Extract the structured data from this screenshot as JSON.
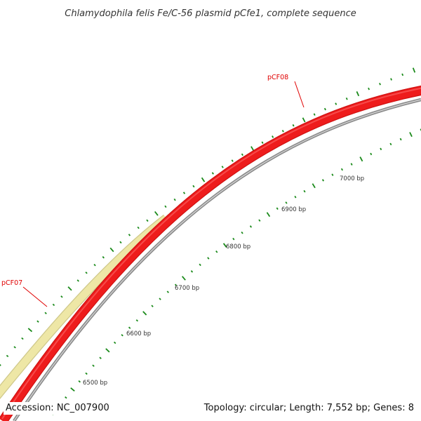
{
  "title": "Chlamydophila felis Fe/C-56 plasmid pCfe1, complete sequence",
  "footer": {
    "accession": "Accession: NC_007900",
    "summary": "Topology: circular; Length: 7,552 bp; Genes: 8"
  },
  "colors": {
    "gene_forward": "#ee1c1c",
    "gene_forward_highlight": "#ff7a7a",
    "gene_other": "#eee7a6",
    "gene_other_edge": "#cfc88a",
    "backbone": "#8c8c8c",
    "ticks": "#1a8a1a",
    "labels": "#e00000"
  },
  "genes": [
    {
      "name": "pCF07"
    },
    {
      "name": "pCF08"
    }
  ],
  "tick_labels": [
    "6500 bp",
    "6600 bp",
    "6700 bp",
    "6800 bp",
    "6900 bp",
    "7000 bp"
  ]
}
